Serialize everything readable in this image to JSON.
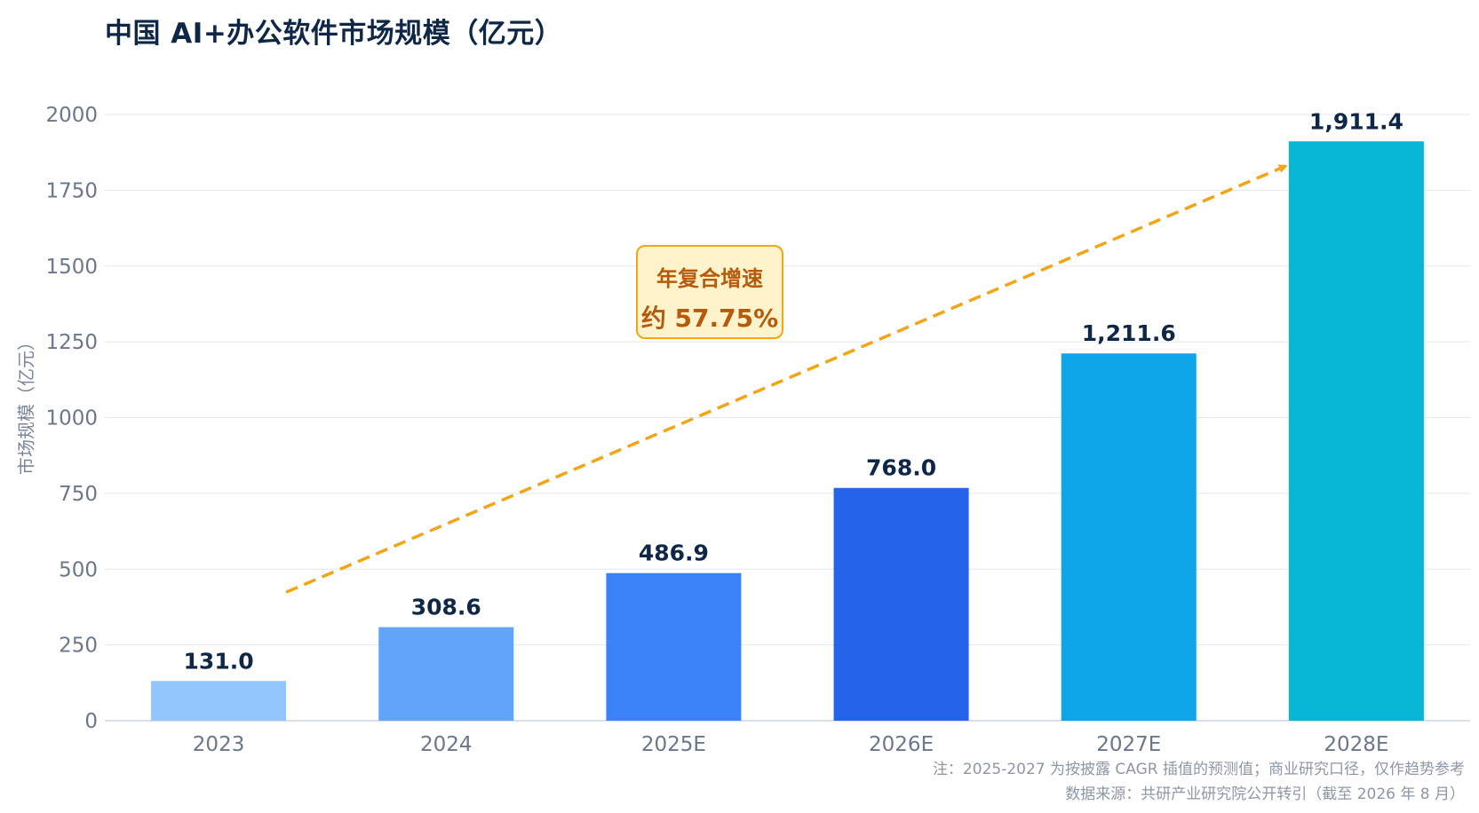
{
  "title": "中国 AI+办公软件市场规模（亿元）",
  "colors": {
    "bars": [
      "#93c5fd",
      "#60a5fa",
      "#3b82f6",
      "#2563eb",
      "#0ea5e9",
      "#06b6d4"
    ],
    "grid": "#e3e7ee",
    "axis_text": "#6b778a",
    "value_label": "#0f2747",
    "trend_arrow": "#f2a516"
  },
  "chart_data": {
    "type": "bar",
    "title": "中国 AI+办公软件市场规模（亿元）",
    "xlabel": "",
    "ylabel": "市场规模（亿元）",
    "ylim": [
      0,
      2000
    ],
    "yticks": [
      0,
      250,
      500,
      750,
      1000,
      1250,
      1500,
      1750,
      2000
    ],
    "ytick_labels": [
      "0",
      "250",
      "500",
      "750",
      "1000",
      "1250",
      "1500",
      "1750",
      "2000"
    ],
    "categories": [
      "2023",
      "2024",
      "2025E",
      "2026E",
      "2027E",
      "2028E"
    ],
    "values": [
      131.0,
      308.6,
      486.9,
      768.0,
      1211.6,
      1911.4
    ],
    "value_labels": [
      "131.0",
      "308.6",
      "486.9",
      "768.0",
      "1,211.6",
      "1,911.4"
    ],
    "grid": true,
    "annotation": {
      "line1": "年复合增速",
      "line2": "约 57.75%"
    }
  },
  "notes": {
    "note": "注：2025-2027 为按披露 CAGR 插值的预测值；商业研究口径，仅作趋势参考",
    "source": "数据来源：共研产业研究院公开转引（截至 2026 年 8 月）"
  }
}
